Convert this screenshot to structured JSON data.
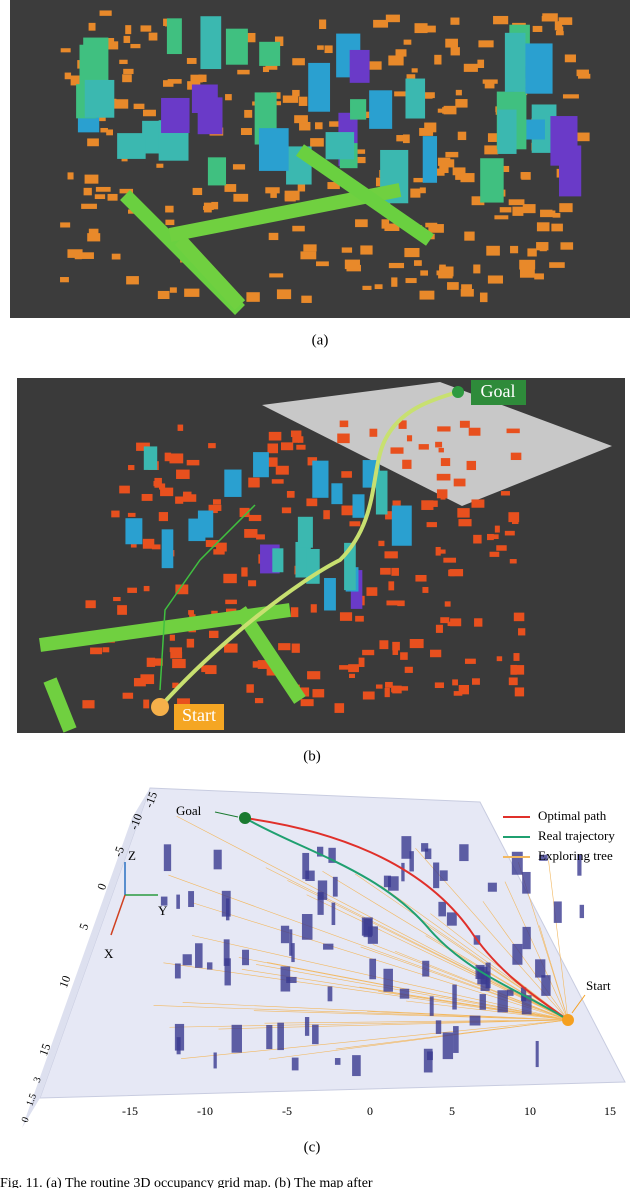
{
  "panels": [
    {
      "label": "(a)"
    },
    {
      "label": "(b)",
      "goal": "Goal",
      "start": "Start"
    },
    {
      "label": "(c)",
      "goal": "Goal",
      "start": "Start",
      "legend": [
        "Optimal path",
        "Real trajectory",
        "Exploring tree"
      ],
      "axes": [
        "Z",
        "Y",
        "X"
      ],
      "left_ticks": [
        "-15",
        "-10",
        "-5",
        "0",
        "5",
        "10",
        "15"
      ],
      "bottom_ticks": [
        "-15",
        "-10",
        "-5",
        "0",
        "5",
        "10",
        "15"
      ],
      "z_ticks": [
        "3",
        "1.5",
        "0"
      ]
    }
  ],
  "caption": "Fig. 11.   (a)   The routine 3D occupancy grid map.   (b)   The map after"
}
